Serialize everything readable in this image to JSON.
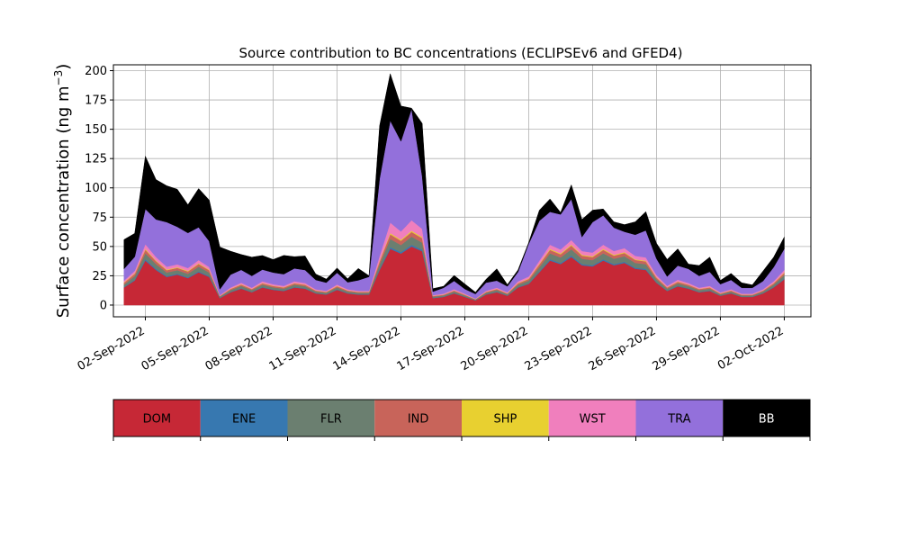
{
  "chart_data": {
    "type": "area",
    "stacked": true,
    "title": "Source contribution to BC concentrations (ECLIPSEv6 and GFED4)",
    "ylabel": "Surface concentration (ng m",
    "ylabel_sup": "−3",
    "ylabel_close": ")",
    "ylim": [
      -10,
      205
    ],
    "yticks": [
      0,
      25,
      50,
      75,
      100,
      125,
      150,
      175,
      200
    ],
    "xlim": [
      "2022-08-31T12:00",
      "2022-10-03T06:00"
    ],
    "xticks": [
      "2022-09-02",
      "2022-09-05",
      "2022-09-08",
      "2022-09-11",
      "2022-09-14",
      "2022-09-17",
      "2022-09-20",
      "2022-09-23",
      "2022-09-26",
      "2022-09-29",
      "2022-10-02"
    ],
    "xtick_labels": [
      "02-Sep-2022",
      "05-Sep-2022",
      "08-Sep-2022",
      "11-Sep-2022",
      "14-Sep-2022",
      "17-Sep-2022",
      "20-Sep-2022",
      "23-Sep-2022",
      "26-Sep-2022",
      "29-Sep-2022",
      "02-Oct-2022"
    ],
    "grid": true,
    "legend_position": "below",
    "x": [
      "2022-09-01T00:00",
      "2022-09-01T12:00",
      "2022-09-02T00:00",
      "2022-09-02T12:00",
      "2022-09-03T00:00",
      "2022-09-03T12:00",
      "2022-09-04T00:00",
      "2022-09-04T12:00",
      "2022-09-05T00:00",
      "2022-09-05T12:00",
      "2022-09-06T00:00",
      "2022-09-06T12:00",
      "2022-09-07T00:00",
      "2022-09-07T12:00",
      "2022-09-08T00:00",
      "2022-09-08T12:00",
      "2022-09-09T00:00",
      "2022-09-09T12:00",
      "2022-09-10T00:00",
      "2022-09-10T12:00",
      "2022-09-11T00:00",
      "2022-09-11T12:00",
      "2022-09-12T00:00",
      "2022-09-12T12:00",
      "2022-09-13T00:00",
      "2022-09-13T12:00",
      "2022-09-14T00:00",
      "2022-09-14T12:00",
      "2022-09-15T00:00",
      "2022-09-15T12:00",
      "2022-09-16T00:00",
      "2022-09-16T12:00",
      "2022-09-17T00:00",
      "2022-09-17T12:00",
      "2022-09-18T00:00",
      "2022-09-18T12:00",
      "2022-09-19T00:00",
      "2022-09-19T12:00",
      "2022-09-20T00:00",
      "2022-09-20T12:00",
      "2022-09-21T00:00",
      "2022-09-21T12:00",
      "2022-09-22T00:00",
      "2022-09-22T12:00",
      "2022-09-23T00:00",
      "2022-09-23T12:00",
      "2022-09-24T00:00",
      "2022-09-24T12:00",
      "2022-09-25T00:00",
      "2022-09-25T12:00",
      "2022-09-26T00:00",
      "2022-09-26T12:00",
      "2022-09-27T00:00",
      "2022-09-27T12:00",
      "2022-09-28T00:00",
      "2022-09-28T12:00",
      "2022-09-29T00:00",
      "2022-09-29T12:00",
      "2022-09-30T00:00",
      "2022-09-30T12:00",
      "2022-10-01T00:00",
      "2022-10-01T12:00",
      "2022-10-02T00:00"
    ],
    "series": [
      {
        "name": "DOM",
        "color": "#c62836",
        "values": [
          15,
          21,
          38,
          30,
          24,
          26,
          23,
          28,
          24,
          6,
          11,
          14,
          11,
          15,
          13,
          12,
          15,
          14,
          10,
          9,
          13,
          10,
          9,
          9,
          30,
          48,
          44,
          50,
          46,
          6,
          7,
          10,
          7,
          4,
          9,
          11,
          8,
          15,
          18,
          28,
          38,
          35,
          41,
          34,
          33,
          38,
          34,
          36,
          31,
          30,
          19,
          12,
          16,
          14,
          11,
          12,
          8,
          10,
          7,
          7,
          10,
          15,
          22
        ]
      },
      {
        "name": "ENE",
        "color": "#3778b0",
        "values": [
          0.5,
          0.7,
          1.2,
          1,
          0.8,
          0.8,
          0.7,
          0.8,
          0.7,
          0.2,
          0.3,
          0.4,
          0.3,
          0.4,
          0.4,
          0.4,
          0.4,
          0.4,
          0.3,
          0.3,
          0.4,
          0.3,
          0.3,
          0.3,
          0.9,
          1.4,
          1.3,
          1.4,
          1.3,
          0.2,
          0.2,
          0.3,
          0.2,
          0.1,
          0.3,
          0.3,
          0.2,
          0.4,
          0.5,
          0.8,
          1.1,
          1,
          1.2,
          1,
          1,
          1.1,
          1,
          1,
          0.9,
          0.9,
          0.5,
          0.4,
          0.5,
          0.4,
          0.3,
          0.4,
          0.2,
          0.3,
          0.2,
          0.2,
          0.3,
          0.4,
          0.6
        ]
      },
      {
        "name": "FLR",
        "color": "#6b7f70",
        "values": [
          2,
          3,
          5,
          4,
          3,
          3,
          3,
          4,
          3,
          1,
          1.5,
          2,
          1.5,
          2,
          1.8,
          1.6,
          2,
          1.8,
          1.3,
          1.2,
          1.7,
          1.3,
          1.2,
          1.2,
          4,
          7,
          6,
          7,
          6,
          1,
          1,
          1.3,
          1,
          0.6,
          1.2,
          1.5,
          1.1,
          2,
          2.4,
          3.7,
          5,
          4.6,
          5.4,
          4.5,
          4.4,
          5,
          4.5,
          4.7,
          4.1,
          4,
          2.5,
          1.6,
          2.1,
          1.8,
          1.5,
          1.6,
          1.1,
          1.3,
          1,
          1,
          1.3,
          2,
          3
        ]
      },
      {
        "name": "IND",
        "color": "#c8645a",
        "values": [
          1.5,
          2,
          3,
          2.5,
          2,
          2,
          2,
          2.3,
          2,
          0.5,
          1,
          1.1,
          0.9,
          1.2,
          1.1,
          1,
          1.2,
          1.1,
          0.8,
          0.7,
          1,
          0.8,
          0.7,
          0.7,
          2.5,
          4,
          3.6,
          4,
          3.8,
          0.5,
          0.6,
          0.8,
          0.6,
          0.3,
          0.7,
          0.9,
          0.7,
          1.2,
          1.4,
          2.2,
          3,
          2.8,
          3.2,
          2.7,
          2.6,
          3,
          2.7,
          2.8,
          2.5,
          2.4,
          1.5,
          1,
          1.3,
          1.1,
          0.9,
          1,
          0.6,
          0.8,
          0.6,
          0.6,
          0.8,
          1.2,
          1.8
        ]
      },
      {
        "name": "SHP",
        "color": "#e8d030",
        "values": [
          0.4,
          0.5,
          0.8,
          0.6,
          0.5,
          0.5,
          0.5,
          0.6,
          0.5,
          0.2,
          0.2,
          0.3,
          0.2,
          0.3,
          0.3,
          0.3,
          0.3,
          0.3,
          0.2,
          0.2,
          0.3,
          0.2,
          0.2,
          0.2,
          0.6,
          1,
          0.9,
          1,
          0.9,
          0.2,
          0.2,
          0.2,
          0.2,
          0.1,
          0.2,
          0.2,
          0.2,
          0.3,
          0.4,
          0.6,
          0.8,
          0.7,
          0.8,
          0.7,
          0.7,
          0.8,
          0.7,
          0.7,
          0.6,
          0.6,
          0.4,
          0.3,
          0.3,
          0.3,
          0.2,
          0.3,
          0.2,
          0.2,
          0.2,
          0.2,
          0.2,
          0.3,
          0.5
        ]
      },
      {
        "name": "WST",
        "color": "#f07fbd",
        "values": [
          1.5,
          2,
          4,
          3,
          2.5,
          2.5,
          2.4,
          2.7,
          2.3,
          0.6,
          1,
          1.3,
          1,
          1.4,
          1.2,
          1.1,
          1.4,
          1.3,
          0.9,
          0.8,
          1.2,
          0.9,
          0.8,
          0.8,
          4,
          9,
          7,
          9,
          7,
          0.6,
          0.7,
          1,
          0.7,
          0.4,
          0.8,
          1,
          0.8,
          1.4,
          1.7,
          2.6,
          3.6,
          3.3,
          3.9,
          3.2,
          3.1,
          3.6,
          3.2,
          3.4,
          2.9,
          2.8,
          1.8,
          1.1,
          1.5,
          1.3,
          1,
          1.1,
          0.8,
          0.9,
          0.7,
          0.7,
          0.9,
          1.4,
          2.1
        ]
      },
      {
        "name": "TRA",
        "color": "#9370db",
        "values": [
          10,
          12,
          30,
          32,
          38,
          32,
          30,
          28,
          22,
          5,
          11,
          11,
          10,
          10,
          10,
          10,
          11,
          11,
          8,
          7,
          10,
          6,
          9,
          12,
          66,
          87,
          77,
          95,
          45,
          3,
          5,
          7,
          4,
          4,
          7,
          6,
          5,
          8,
          28,
          34,
          28,
          30,
          35,
          12,
          26,
          25,
          20,
          14,
          18,
          23,
          14,
          8,
          12,
          12,
          10,
          12,
          7,
          8,
          5,
          5,
          7,
          12,
          18
        ]
      },
      {
        "name": "BB",
        "color": "#000000",
        "values": [
          25,
          20,
          45,
          34,
          31,
          32,
          24,
          33,
          35,
          36,
          20,
          13,
          16,
          12,
          11,
          16,
          10,
          12,
          5,
          3,
          4,
          3,
          10,
          0.8,
          45,
          40,
          30,
          0.6,
          45,
          2.5,
          1.3,
          4.7,
          4.3,
          1.5,
          2.8,
          10,
          1.4,
          1.7,
          1,
          9,
          11,
          1.6,
          12.1,
          14.9,
          10.2,
          5.5,
          4.9,
          6,
          11,
          16,
          13,
          14.5,
          14.3,
          4.1,
          8.9,
          12.5,
          3.1,
          5.5,
          4.3,
          2.5,
          8.5,
          8.5,
          10
        ]
      }
    ]
  }
}
